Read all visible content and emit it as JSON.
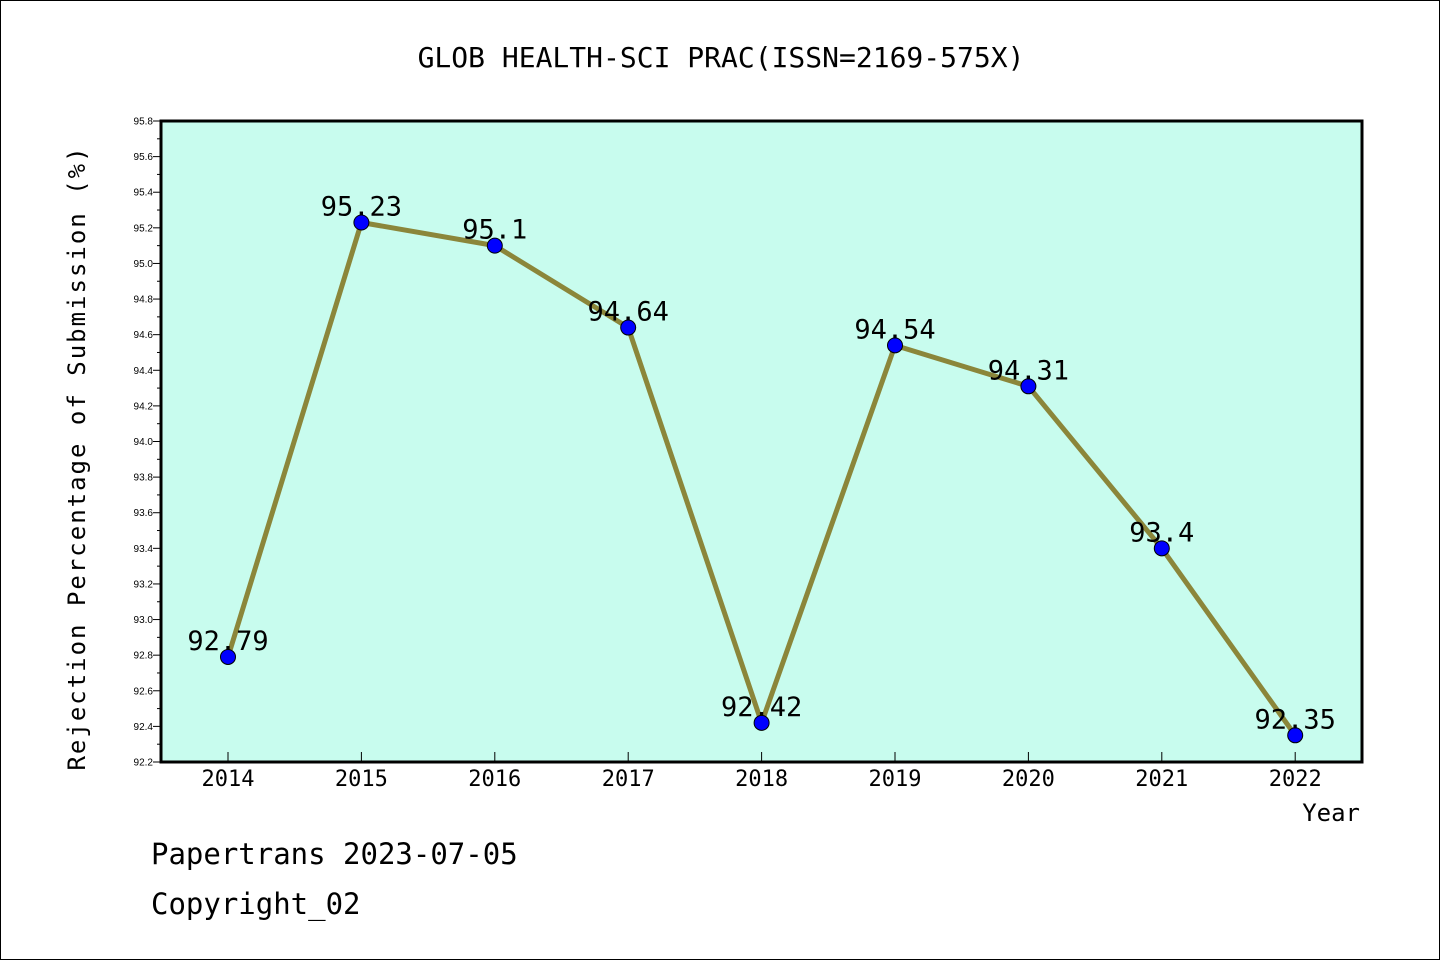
{
  "chart_data": {
    "type": "line",
    "title": "GLOB HEALTH-SCI PRAC(ISSN=2169-575X)",
    "xlabel": "Year",
    "ylabel": "Rejection Percentage of Submission (%)",
    "categories": [
      "2014",
      "2015",
      "2016",
      "2017",
      "2018",
      "2019",
      "2020",
      "2021",
      "2022"
    ],
    "series": [
      {
        "values": [
          92.79,
          95.23,
          95.1,
          94.64,
          92.42,
          94.54,
          94.31,
          93.4,
          92.35
        ],
        "data_labels": [
          "92.79",
          "95.23",
          "95.1",
          "94.64",
          "92.42",
          "94.54",
          "94.31",
          "93.4",
          "92.35"
        ]
      }
    ],
    "ylim": [
      92.2,
      95.8
    ],
    "yticks": [
      "92.2",
      "92.4",
      "92.6",
      "92.8",
      "93.0",
      "93.2",
      "93.4",
      "93.6",
      "93.8",
      "94.0",
      "94.2",
      "94.4",
      "94.6",
      "94.8",
      "95.0",
      "95.2",
      "95.4",
      "95.6",
      "95.8"
    ],
    "grid": false,
    "colors": {
      "plot_background": "#c8fcee",
      "line": "#8b863a",
      "marker": "#0000ff"
    }
  },
  "footer": {
    "line1": "Papertrans 2023-07-05",
    "line2": "Copyright_02"
  }
}
